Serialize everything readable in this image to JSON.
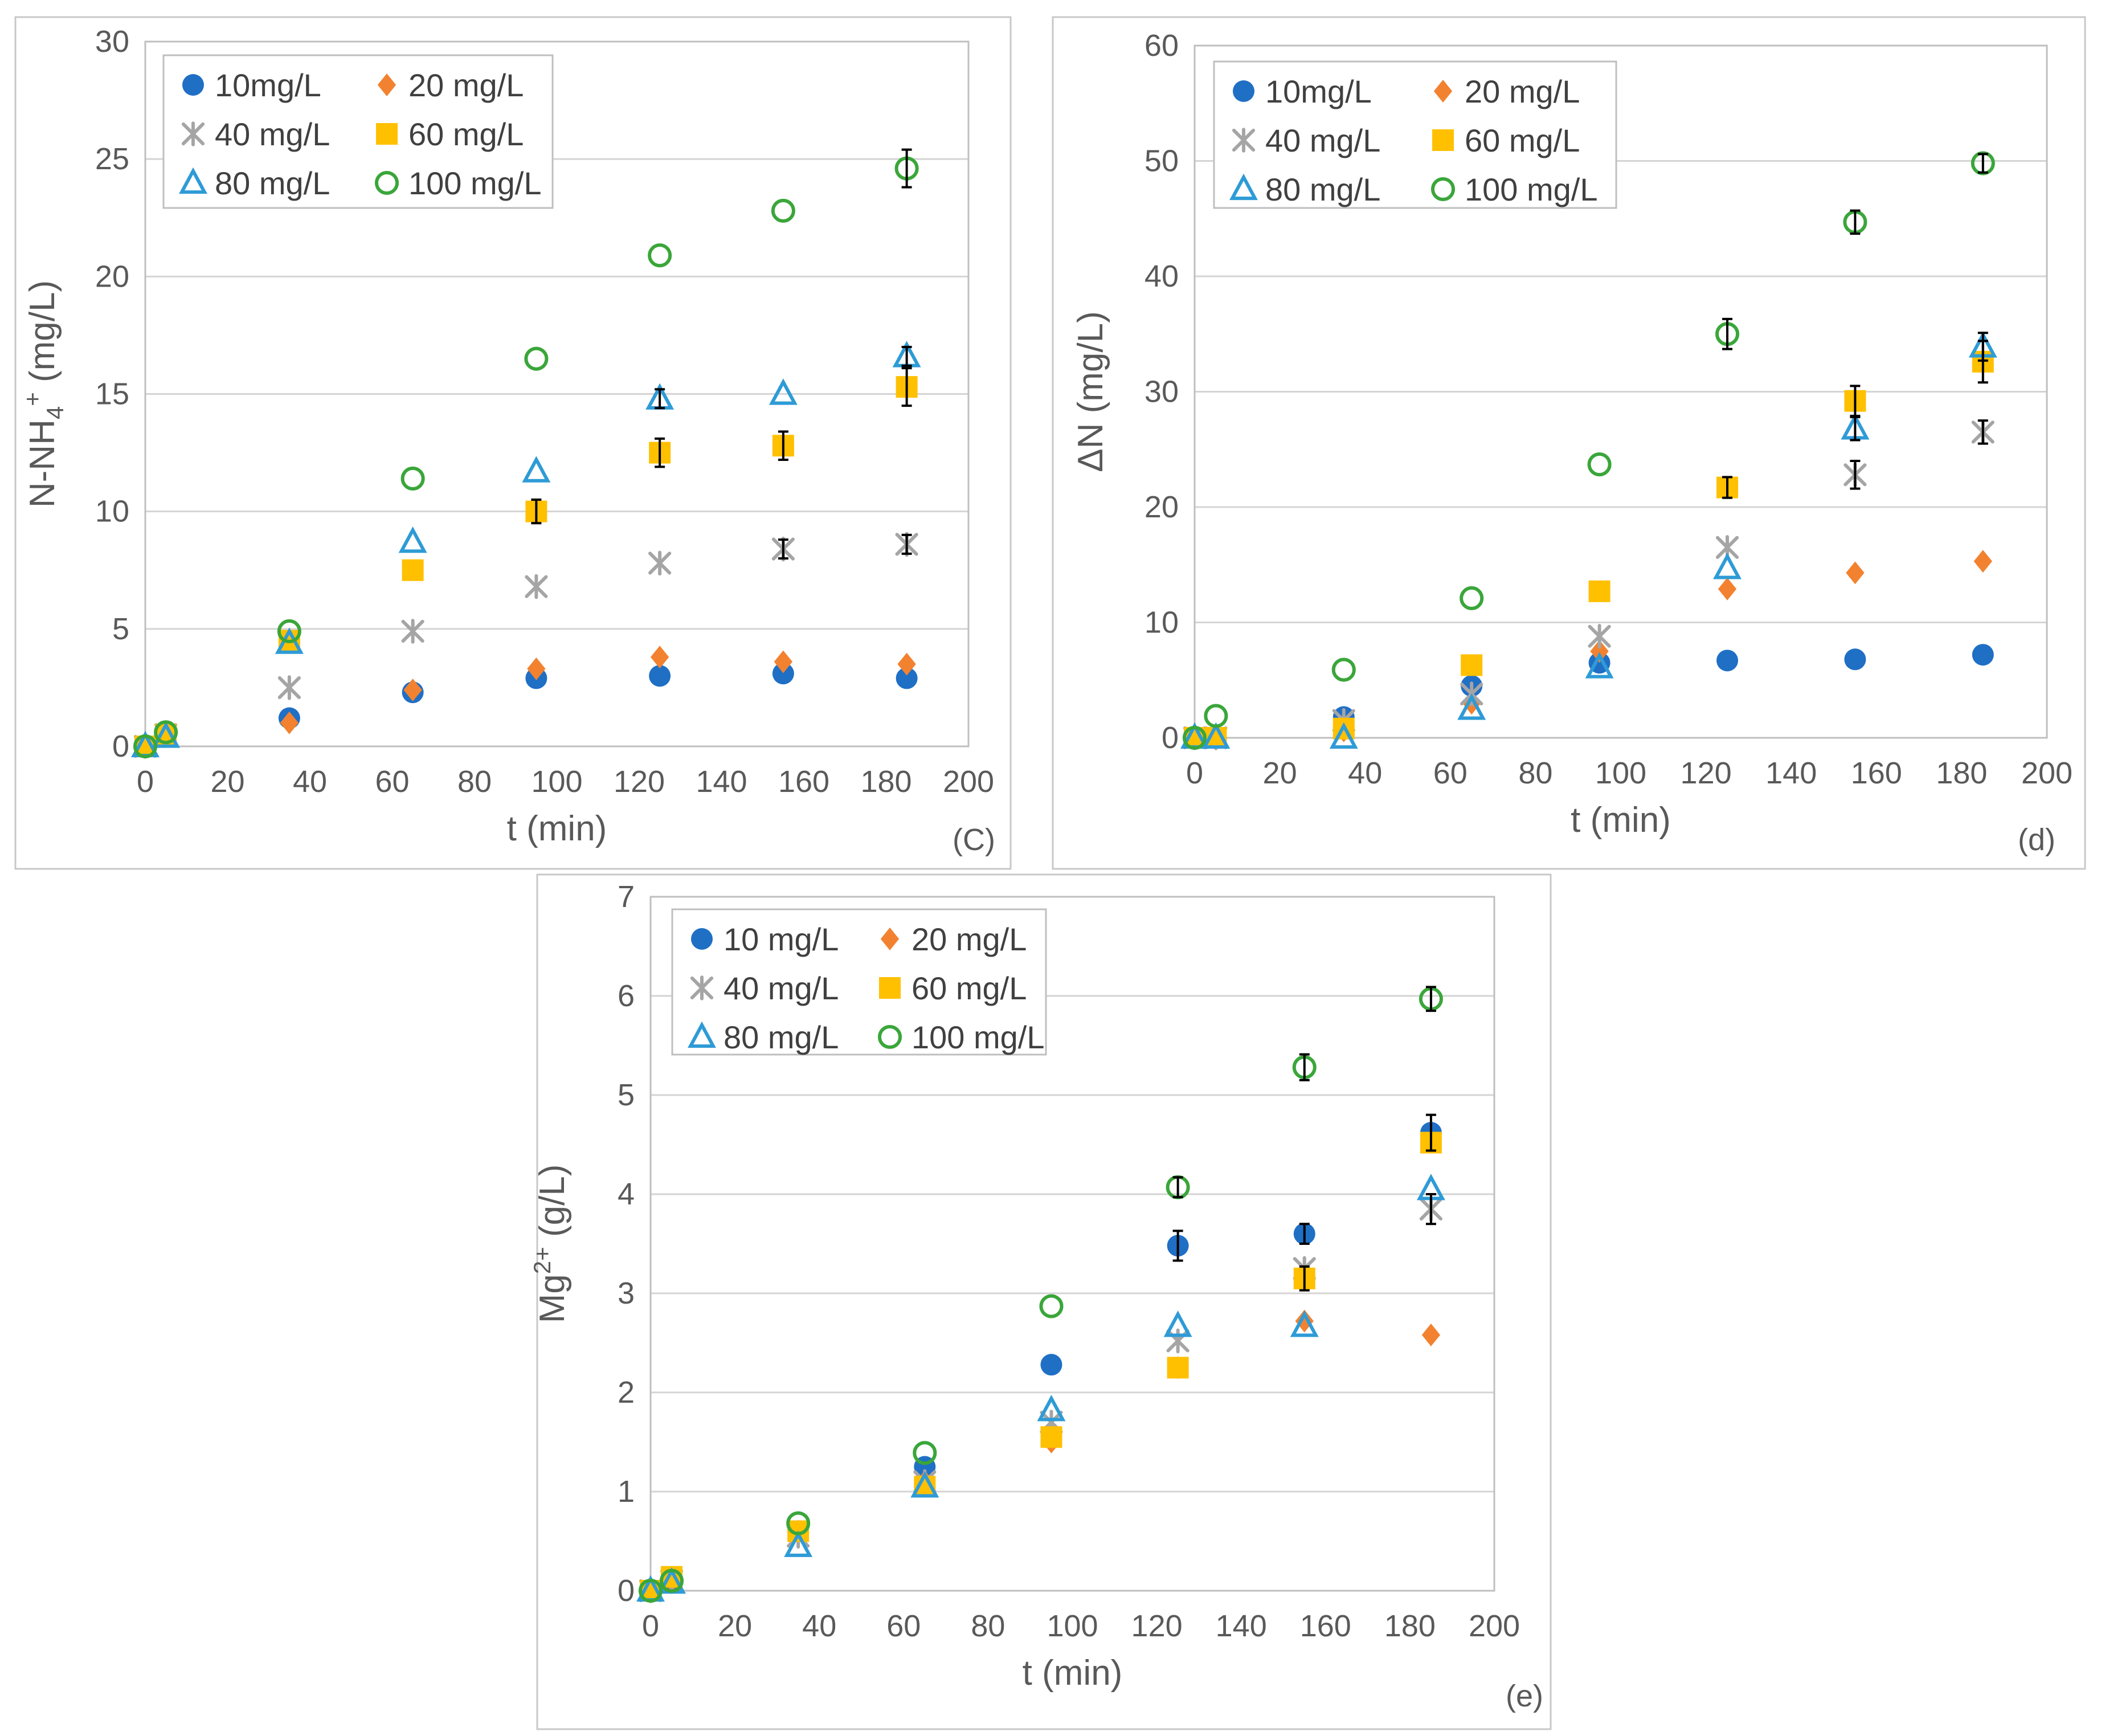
{
  "figure": {
    "series_styles": [
      {
        "key": "s10",
        "color": "#1f6fc5",
        "marker": "circle-filled"
      },
      {
        "key": "s20",
        "color": "#f28230",
        "marker": "diamond-filled"
      },
      {
        "key": "s40",
        "color": "#a5a5a5",
        "marker": "asterisk"
      },
      {
        "key": "s60",
        "color": "#ffc000",
        "marker": "square-filled"
      },
      {
        "key": "s80",
        "color": "#2e9bd6",
        "marker": "triangle-open"
      },
      {
        "key": "s100",
        "color": "#3aa63a",
        "marker": "circle-open"
      }
    ],
    "error_bar_color": "#000000"
  },
  "chart_data": [
    {
      "id": "c",
      "type": "scatter",
      "panel_label": "(C)",
      "xlabel": "t (min)",
      "ylabel": "N-NH4+ (mg/L)",
      "ylabel_parts": {
        "main": "N-NH",
        "sub": "4",
        "sup": "+",
        "unit": " (mg/L)"
      },
      "xlim": [
        0,
        200
      ],
      "ylim": [
        0,
        30
      ],
      "xticks": [
        "0",
        "20",
        "40",
        "60",
        "80",
        "100",
        "120",
        "140",
        "160",
        "180",
        "200"
      ],
      "yticks": [
        "0",
        "5",
        "10",
        "15",
        "20",
        "25",
        "30"
      ],
      "legend_position": "top-left",
      "x": [
        0,
        5,
        35,
        65,
        95,
        125,
        155,
        185
      ],
      "series": [
        {
          "name": "10mg/L",
          "values": [
            0,
            0.5,
            1.2,
            2.3,
            2.9,
            3.0,
            3.1,
            2.9
          ]
        },
        {
          "name": "20 mg/L",
          "values": [
            0,
            0.5,
            1.0,
            2.4,
            3.3,
            3.8,
            3.6,
            3.5
          ]
        },
        {
          "name": "40 mg/L",
          "values": [
            0,
            0.5,
            2.5,
            4.9,
            6.8,
            7.8,
            8.4,
            8.6
          ]
        },
        {
          "name": "60 mg/L",
          "values": [
            0,
            0.5,
            4.5,
            7.5,
            10.0,
            12.5,
            12.8,
            15.3
          ]
        },
        {
          "name": "80 mg/L",
          "values": [
            0,
            0.4,
            4.4,
            8.7,
            11.7,
            14.8,
            15.0,
            16.6
          ]
        },
        {
          "name": "100 mg/L",
          "values": [
            0,
            0.6,
            4.9,
            11.4,
            16.5,
            20.9,
            22.8,
            24.6
          ]
        }
      ],
      "error_bars": [
        {
          "series": "100 mg/L",
          "x": 185,
          "y": 24.6,
          "err": 0.8
        },
        {
          "series": "60 mg/L",
          "x": 185,
          "y": 15.3,
          "err": 0.8
        },
        {
          "series": "80 mg/L",
          "x": 185,
          "y": 16.6,
          "err": 0.4
        },
        {
          "series": "60 mg/L",
          "x": 155,
          "y": 12.8,
          "err": 0.6
        },
        {
          "series": "60 mg/L",
          "x": 125,
          "y": 12.5,
          "err": 0.6
        },
        {
          "series": "60 mg/L",
          "x": 95,
          "y": 10.0,
          "err": 0.5
        },
        {
          "series": "80 mg/L",
          "x": 125,
          "y": 14.8,
          "err": 0.4
        },
        {
          "series": "40 mg/L",
          "x": 185,
          "y": 8.6,
          "err": 0.4
        },
        {
          "series": "40 mg/L",
          "x": 155,
          "y": 8.4,
          "err": 0.4
        }
      ]
    },
    {
      "id": "d",
      "type": "scatter",
      "panel_label": "(d)",
      "xlabel": "t (min)",
      "ylabel": "ΔN (mg/L)",
      "xlim": [
        0,
        200
      ],
      "ylim": [
        0,
        60
      ],
      "xticks": [
        "0",
        "20",
        "40",
        "60",
        "80",
        "100",
        "120",
        "140",
        "160",
        "180",
        "200"
      ],
      "yticks": [
        "0",
        "10",
        "20",
        "30",
        "40",
        "50",
        "60"
      ],
      "legend_position": "top-left",
      "x": [
        0,
        5,
        35,
        65,
        95,
        125,
        155,
        185
      ],
      "series": [
        {
          "name": "10mg/L",
          "values": [
            0,
            0,
            1.8,
            4.5,
            6.5,
            6.7,
            6.8,
            7.2
          ]
        },
        {
          "name": "20 mg/L",
          "values": [
            0,
            0,
            0.6,
            3.0,
            7.5,
            12.9,
            14.3,
            15.3
          ]
        },
        {
          "name": "40 mg/L",
          "values": [
            0,
            0,
            1.5,
            3.8,
            8.8,
            16.5,
            22.8,
            26.5
          ]
        },
        {
          "name": "60 mg/L",
          "values": [
            0,
            0,
            0.8,
            6.3,
            12.7,
            21.7,
            29.2,
            32.6
          ]
        },
        {
          "name": "80 mg/L",
          "values": [
            0,
            0,
            0,
            2.5,
            6.1,
            14.7,
            26.8,
            33.9
          ]
        },
        {
          "name": "100 mg/L",
          "values": [
            0,
            1.9,
            5.9,
            12.1,
            23.7,
            35.0,
            44.7,
            49.8
          ]
        }
      ],
      "error_bars": [
        {
          "series": "100 mg/L",
          "x": 125,
          "y": 35.0,
          "err": 1.3
        },
        {
          "series": "100 mg/L",
          "x": 155,
          "y": 44.7,
          "err": 1.0
        },
        {
          "series": "100 mg/L",
          "x": 185,
          "y": 49.8,
          "err": 0.8
        },
        {
          "series": "60 mg/L",
          "x": 185,
          "y": 32.6,
          "err": 1.8
        },
        {
          "series": "80 mg/L",
          "x": 185,
          "y": 33.9,
          "err": 1.2
        },
        {
          "series": "60 mg/L",
          "x": 155,
          "y": 29.2,
          "err": 1.3
        },
        {
          "series": "80 mg/L",
          "x": 155,
          "y": 26.8,
          "err": 1.0
        },
        {
          "series": "40 mg/L",
          "x": 155,
          "y": 22.8,
          "err": 1.2
        },
        {
          "series": "40 mg/L",
          "x": 185,
          "y": 26.5,
          "err": 1.0
        },
        {
          "series": "60 mg/L",
          "x": 125,
          "y": 21.7,
          "err": 0.9
        }
      ]
    },
    {
      "id": "e",
      "type": "scatter",
      "panel_label": "(e)",
      "xlabel": "t (min)",
      "ylabel": "Mg2+ (g/L)",
      "ylabel_parts": {
        "main": "Mg",
        "sub": "",
        "sup": "2+",
        "unit": " (g/L)"
      },
      "xlim": [
        0,
        200
      ],
      "ylim": [
        0,
        7
      ],
      "xticks": [
        "0",
        "20",
        "40",
        "60",
        "80",
        "100",
        "120",
        "140",
        "160",
        "180",
        "200"
      ],
      "yticks": [
        "0",
        "1",
        "2",
        "3",
        "4",
        "5",
        "6",
        "7"
      ],
      "legend_position": "top-left",
      "x": [
        0,
        5,
        35,
        65,
        95,
        125,
        155,
        185
      ],
      "series": [
        {
          "name": "10 mg/L",
          "values": [
            0,
            0.1,
            0.6,
            1.25,
            2.28,
            3.48,
            3.6,
            4.62
          ]
        },
        {
          "name": "20 mg/L",
          "values": [
            0,
            0.1,
            0.6,
            1.1,
            1.5,
            2.25,
            2.72,
            2.58
          ]
        },
        {
          "name": "40 mg/L",
          "values": [
            0,
            0.1,
            0.55,
            1.1,
            1.7,
            2.52,
            3.25,
            3.85
          ]
        },
        {
          "name": "60 mg/L",
          "values": [
            0,
            0.14,
            0.6,
            1.05,
            1.55,
            2.25,
            3.15,
            4.52
          ]
        },
        {
          "name": "80 mg/L",
          "values": [
            0,
            0.08,
            0.45,
            1.05,
            1.82,
            2.67,
            2.67,
            4.05
          ]
        },
        {
          "name": "100 mg/L",
          "values": [
            0,
            0.1,
            0.68,
            1.39,
            2.87,
            4.07,
            5.28,
            5.97
          ]
        }
      ],
      "error_bars": [
        {
          "series": "100 mg/L",
          "x": 155,
          "y": 5.28,
          "err": 0.13
        },
        {
          "series": "100 mg/L",
          "x": 185,
          "y": 5.97,
          "err": 0.12
        },
        {
          "series": "100 mg/L",
          "x": 125,
          "y": 4.07,
          "err": 0.1
        },
        {
          "series": "10 mg/L",
          "x": 125,
          "y": 3.48,
          "err": 0.15
        },
        {
          "series": "10 mg/L",
          "x": 185,
          "y": 4.62,
          "err": 0.18
        },
        {
          "series": "40 mg/L",
          "x": 185,
          "y": 3.85,
          "err": 0.15
        },
        {
          "series": "60 mg/L",
          "x": 155,
          "y": 3.15,
          "err": 0.12
        },
        {
          "series": "10 mg/L",
          "x": 155,
          "y": 3.6,
          "err": 0.1
        }
      ]
    }
  ]
}
